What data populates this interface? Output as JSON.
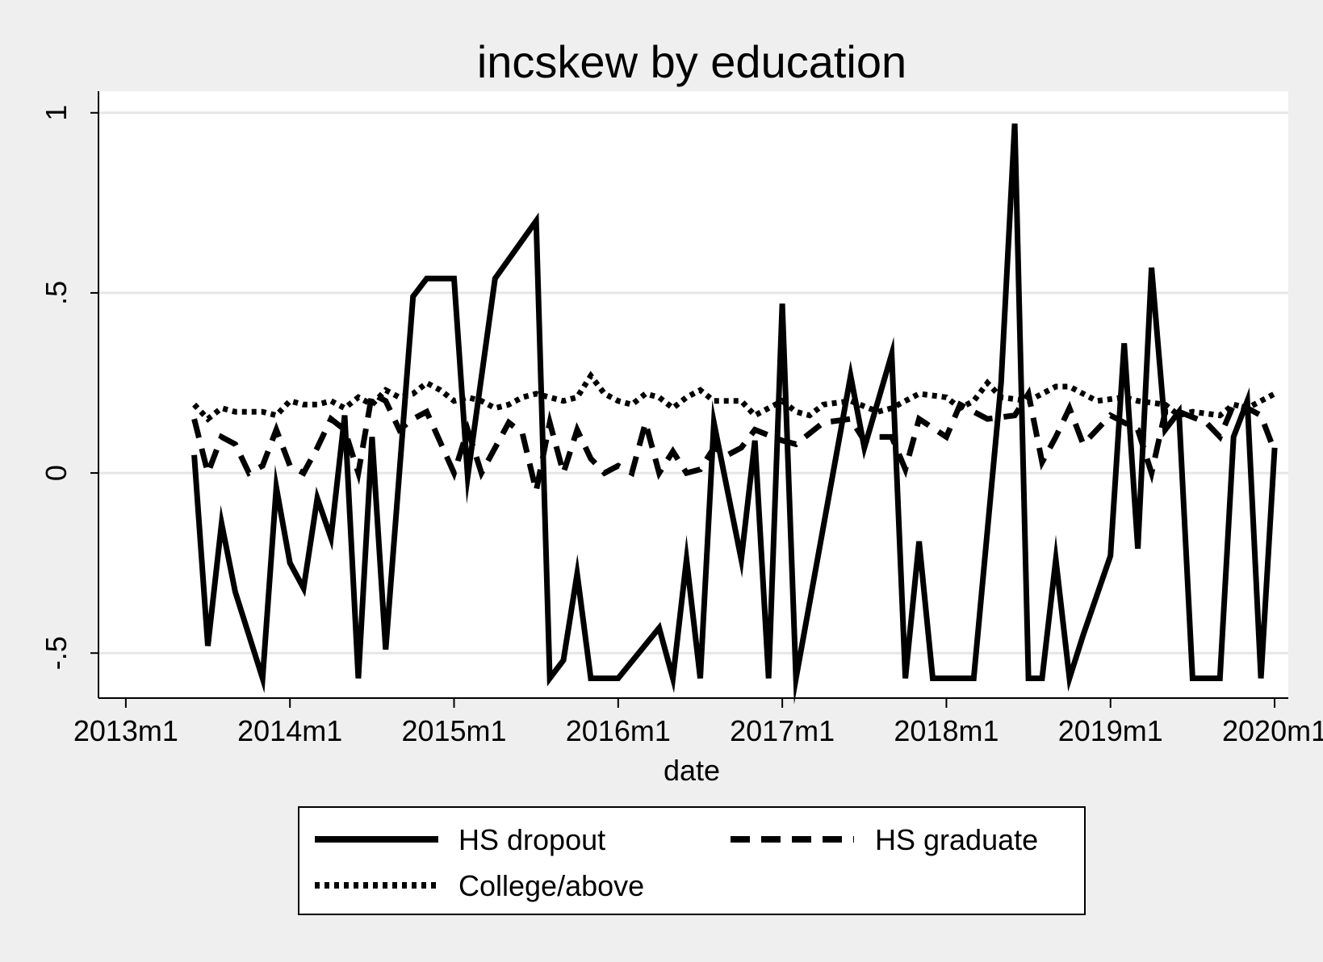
{
  "chart_data": {
    "type": "line",
    "title": "incskew by education",
    "xlabel": "date",
    "ylabel": "",
    "x_tick_labels": [
      "2013m1",
      "2014m1",
      "2015m1",
      "2016m1",
      "2017m1",
      "2018m1",
      "2019m1",
      "2020m1"
    ],
    "x_ticks": [
      "2013-01",
      "2014-01",
      "2015-01",
      "2016-01",
      "2017-01",
      "2018-01",
      "2019-01",
      "2020-01"
    ],
    "xlim": [
      "2012-11",
      "2020-02"
    ],
    "y_tick_labels": [
      "1",
      ".5",
      "0",
      "-.5"
    ],
    "y_ticks": [
      1,
      0.5,
      0,
      -0.5
    ],
    "ylim": [
      -0.625,
      1.06
    ],
    "grid": true,
    "legend_position": "bottom",
    "colors": {
      "plot_bg": "#ffffff",
      "page_bg": "#efefef",
      "line": "#000000",
      "grid": "#e6e6e6"
    },
    "series": [
      {
        "name": "HS dropout",
        "style": "solid",
        "points": [
          [
            "2013-06",
            0.05
          ],
          [
            "2013-07",
            -0.48
          ],
          [
            "2013-08",
            -0.14
          ],
          [
            "2013-09",
            -0.33
          ],
          [
            "2013-11",
            -0.57
          ],
          [
            "2013-12",
            -0.04
          ],
          [
            "2014-01",
            -0.25
          ],
          [
            "2014-02",
            -0.32
          ],
          [
            "2014-03",
            -0.07
          ],
          [
            "2014-04",
            -0.18
          ],
          [
            "2014-05",
            0.16
          ],
          [
            "2014-06",
            -0.57
          ],
          [
            "2014-07",
            0.1
          ],
          [
            "2014-08",
            -0.49
          ],
          [
            "2014-10",
            0.49
          ],
          [
            "2014-11",
            0.54
          ],
          [
            "2015-01",
            0.54
          ],
          [
            "2015-02",
            -0.01
          ],
          [
            "2015-04",
            0.54
          ],
          [
            "2015-07",
            0.7
          ],
          [
            "2015-08",
            -0.57
          ],
          [
            "2015-09",
            -0.52
          ],
          [
            "2015-10",
            -0.28
          ],
          [
            "2015-11",
            -0.57
          ],
          [
            "2016-01",
            -0.57
          ],
          [
            "2016-04",
            -0.43
          ],
          [
            "2016-05",
            -0.57
          ],
          [
            "2016-06",
            -0.24
          ],
          [
            "2016-07",
            -0.57
          ],
          [
            "2016-08",
            0.14
          ],
          [
            "2016-10",
            -0.24
          ],
          [
            "2016-11",
            0.09
          ],
          [
            "2016-12",
            -0.57
          ],
          [
            "2017-01",
            0.47
          ],
          [
            "2017-02",
            -0.57
          ],
          [
            "2017-06",
            0.27
          ],
          [
            "2017-07",
            0.07
          ],
          [
            "2017-09",
            0.33
          ],
          [
            "2017-10",
            -0.57
          ],
          [
            "2017-11",
            -0.19
          ],
          [
            "2017-12",
            -0.57
          ],
          [
            "2018-03",
            -0.57
          ],
          [
            "2018-05",
            0.25
          ],
          [
            "2018-06",
            0.97
          ],
          [
            "2018-07",
            -0.57
          ],
          [
            "2018-08",
            -0.57
          ],
          [
            "2018-09",
            -0.24
          ],
          [
            "2018-10",
            -0.57
          ],
          [
            "2018-11",
            -0.45
          ],
          [
            "2019-01",
            -0.23
          ],
          [
            "2019-02",
            0.36
          ],
          [
            "2019-03",
            -0.21
          ],
          [
            "2019-04",
            0.57
          ],
          [
            "2019-05",
            0.12
          ],
          [
            "2019-06",
            0.17
          ],
          [
            "2019-07",
            -0.57
          ],
          [
            "2019-09",
            -0.57
          ],
          [
            "2019-10",
            0.1
          ],
          [
            "2019-11",
            0.2
          ],
          [
            "2019-12",
            -0.57
          ],
          [
            "2020-01",
            0.07
          ]
        ]
      },
      {
        "name": "HS graduate",
        "style": "dashed",
        "points": [
          [
            "2013-06",
            0.15
          ],
          [
            "2013-07",
            0.0
          ],
          [
            "2013-08",
            0.1
          ],
          [
            "2013-09",
            0.08
          ],
          [
            "2013-10",
            0.0
          ],
          [
            "2013-11",
            0.02
          ],
          [
            "2013-12",
            0.12
          ],
          [
            "2014-01",
            0.02
          ],
          [
            "2014-02",
            0.0
          ],
          [
            "2014-03",
            0.07
          ],
          [
            "2014-04",
            0.15
          ],
          [
            "2014-05",
            0.12
          ],
          [
            "2014-06",
            0.0
          ],
          [
            "2014-07",
            0.22
          ],
          [
            "2014-08",
            0.2
          ],
          [
            "2014-09",
            0.12
          ],
          [
            "2014-10",
            0.15
          ],
          [
            "2014-11",
            0.17
          ],
          [
            "2015-01",
            0.0
          ],
          [
            "2015-02",
            0.12
          ],
          [
            "2015-03",
            0.0
          ],
          [
            "2015-05",
            0.14
          ],
          [
            "2015-06",
            0.11
          ],
          [
            "2015-07",
            -0.05
          ],
          [
            "2015-08",
            0.14
          ],
          [
            "2015-09",
            0.0
          ],
          [
            "2015-10",
            0.12
          ],
          [
            "2015-11",
            0.04
          ],
          [
            "2015-12",
            0.0
          ],
          [
            "2016-01",
            0.02
          ],
          [
            "2016-02",
            0.0
          ],
          [
            "2016-03",
            0.14
          ],
          [
            "2016-04",
            0.0
          ],
          [
            "2016-05",
            0.06
          ],
          [
            "2016-06",
            0.0
          ],
          [
            "2016-07",
            0.01
          ],
          [
            "2016-08",
            0.07
          ],
          [
            "2016-09",
            0.05
          ],
          [
            "2016-10",
            0.07
          ],
          [
            "2016-11",
            0.12
          ],
          [
            "2017-01",
            0.09
          ],
          [
            "2017-02",
            0.08
          ],
          [
            "2017-04",
            0.14
          ],
          [
            "2017-06",
            0.15
          ],
          [
            "2017-07",
            0.09
          ],
          [
            "2017-08",
            0.1
          ],
          [
            "2017-09",
            0.1
          ],
          [
            "2017-10",
            0.01
          ],
          [
            "2017-11",
            0.15
          ],
          [
            "2018-01",
            0.1
          ],
          [
            "2018-02",
            0.19
          ],
          [
            "2018-04",
            0.15
          ],
          [
            "2018-06",
            0.16
          ],
          [
            "2018-07",
            0.22
          ],
          [
            "2018-08",
            0.03
          ],
          [
            "2018-09",
            0.1
          ],
          [
            "2018-10",
            0.18
          ],
          [
            "2018-11",
            0.08
          ],
          [
            "2019-01",
            0.16
          ],
          [
            "2019-03",
            0.12
          ],
          [
            "2019-04",
            0.0
          ],
          [
            "2019-05",
            0.17
          ],
          [
            "2019-06",
            0.17
          ],
          [
            "2019-08",
            0.14
          ],
          [
            "2019-09",
            0.1
          ],
          [
            "2019-10",
            0.19
          ],
          [
            "2019-11",
            0.18
          ],
          [
            "2019-12",
            0.16
          ],
          [
            "2020-01",
            0.06
          ]
        ]
      },
      {
        "name": "College/above",
        "style": "dotted",
        "points": [
          [
            "2013-06",
            0.19
          ],
          [
            "2013-07",
            0.15
          ],
          [
            "2013-08",
            0.18
          ],
          [
            "2013-09",
            0.17
          ],
          [
            "2013-11",
            0.17
          ],
          [
            "2013-12",
            0.16
          ],
          [
            "2014-01",
            0.2
          ],
          [
            "2014-02",
            0.19
          ],
          [
            "2014-03",
            0.19
          ],
          [
            "2014-04",
            0.2
          ],
          [
            "2014-05",
            0.18
          ],
          [
            "2014-06",
            0.21
          ],
          [
            "2014-07",
            0.19
          ],
          [
            "2014-08",
            0.23
          ],
          [
            "2014-09",
            0.21
          ],
          [
            "2014-10",
            0.22
          ],
          [
            "2014-11",
            0.25
          ],
          [
            "2014-12",
            0.23
          ],
          [
            "2015-01",
            0.2
          ],
          [
            "2015-02",
            0.21
          ],
          [
            "2015-03",
            0.2
          ],
          [
            "2015-04",
            0.18
          ],
          [
            "2015-05",
            0.19
          ],
          [
            "2015-06",
            0.21
          ],
          [
            "2015-07",
            0.22
          ],
          [
            "2015-09",
            0.2
          ],
          [
            "2015-10",
            0.21
          ],
          [
            "2015-11",
            0.27
          ],
          [
            "2015-12",
            0.22
          ],
          [
            "2016-01",
            0.2
          ],
          [
            "2016-02",
            0.19
          ],
          [
            "2016-03",
            0.22
          ],
          [
            "2016-04",
            0.21
          ],
          [
            "2016-05",
            0.18
          ],
          [
            "2016-06",
            0.21
          ],
          [
            "2016-07",
            0.23
          ],
          [
            "2016-08",
            0.2
          ],
          [
            "2016-09",
            0.2
          ],
          [
            "2016-10",
            0.2
          ],
          [
            "2016-11",
            0.16
          ],
          [
            "2016-12",
            0.18
          ],
          [
            "2017-01",
            0.2
          ],
          [
            "2017-02",
            0.17
          ],
          [
            "2017-03",
            0.16
          ],
          [
            "2017-04",
            0.19
          ],
          [
            "2017-06",
            0.2
          ],
          [
            "2017-08",
            0.17
          ],
          [
            "2017-09",
            0.18
          ],
          [
            "2017-11",
            0.22
          ],
          [
            "2018-01",
            0.21
          ],
          [
            "2018-02",
            0.18
          ],
          [
            "2018-03",
            0.2
          ],
          [
            "2018-04",
            0.25
          ],
          [
            "2018-05",
            0.21
          ],
          [
            "2018-07",
            0.2
          ],
          [
            "2018-08",
            0.22
          ],
          [
            "2018-09",
            0.24
          ],
          [
            "2018-10",
            0.24
          ],
          [
            "2018-11",
            0.22
          ],
          [
            "2018-12",
            0.2
          ],
          [
            "2019-02",
            0.21
          ],
          [
            "2019-03",
            0.2
          ],
          [
            "2019-05",
            0.19
          ],
          [
            "2019-06",
            0.16
          ],
          [
            "2019-07",
            0.17
          ],
          [
            "2019-09",
            0.16
          ],
          [
            "2019-10",
            0.19
          ],
          [
            "2019-11",
            0.18
          ],
          [
            "2019-12",
            0.2
          ],
          [
            "2020-01",
            0.22
          ]
        ]
      }
    ],
    "legend": [
      "HS dropout",
      "HS graduate",
      "College/above"
    ]
  }
}
